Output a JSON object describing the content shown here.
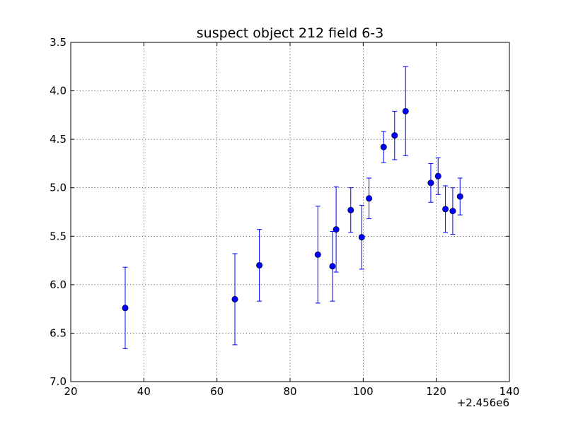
{
  "chart_data": {
    "type": "scatter",
    "title": "suspect object 212 field 6-3",
    "xlabel": "",
    "ylabel": "",
    "x_offset_label": "+2.456e6",
    "xlim": [
      20,
      140
    ],
    "ylim": [
      3.5,
      7.0
    ],
    "y_inverted": true,
    "grid": true,
    "x_ticks": [
      20,
      40,
      60,
      80,
      100,
      120,
      140
    ],
    "x_tick_labels": [
      "20",
      "40",
      "60",
      "80",
      "100",
      "120",
      "140"
    ],
    "y_ticks": [
      3.5,
      4.0,
      4.5,
      5.0,
      5.5,
      6.0,
      6.5,
      7.0
    ],
    "y_tick_labels": [
      "3.5",
      "4.0",
      "4.5",
      "5.0",
      "5.5",
      "6.0",
      "6.5",
      "7.0"
    ],
    "series_color": "#0000ff",
    "points": [
      {
        "x": 34.9,
        "y": 6.24,
        "err": 0.42
      },
      {
        "x": 64.9,
        "y": 6.15,
        "err": 0.47
      },
      {
        "x": 71.6,
        "y": 5.8,
        "err": 0.37
      },
      {
        "x": 87.6,
        "y": 5.69,
        "err": 0.5
      },
      {
        "x": 91.6,
        "y": 5.81,
        "err": 0.36
      },
      {
        "x": 92.6,
        "y": 5.43,
        "err": 0.44
      },
      {
        "x": 96.6,
        "y": 5.23,
        "err": 0.23
      },
      {
        "x": 99.6,
        "y": 5.51,
        "err": 0.33
      },
      {
        "x": 101.6,
        "y": 5.11,
        "err": 0.21
      },
      {
        "x": 105.6,
        "y": 4.58,
        "err": 0.16
      },
      {
        "x": 108.6,
        "y": 4.46,
        "err": 0.25
      },
      {
        "x": 111.6,
        "y": 4.21,
        "err": 0.46
      },
      {
        "x": 118.5,
        "y": 4.95,
        "err": 0.2
      },
      {
        "x": 120.5,
        "y": 4.88,
        "err": 0.19
      },
      {
        "x": 122.5,
        "y": 5.22,
        "err": 0.24
      },
      {
        "x": 124.5,
        "y": 5.24,
        "err": 0.24
      },
      {
        "x": 126.5,
        "y": 5.09,
        "err": 0.19
      }
    ]
  }
}
